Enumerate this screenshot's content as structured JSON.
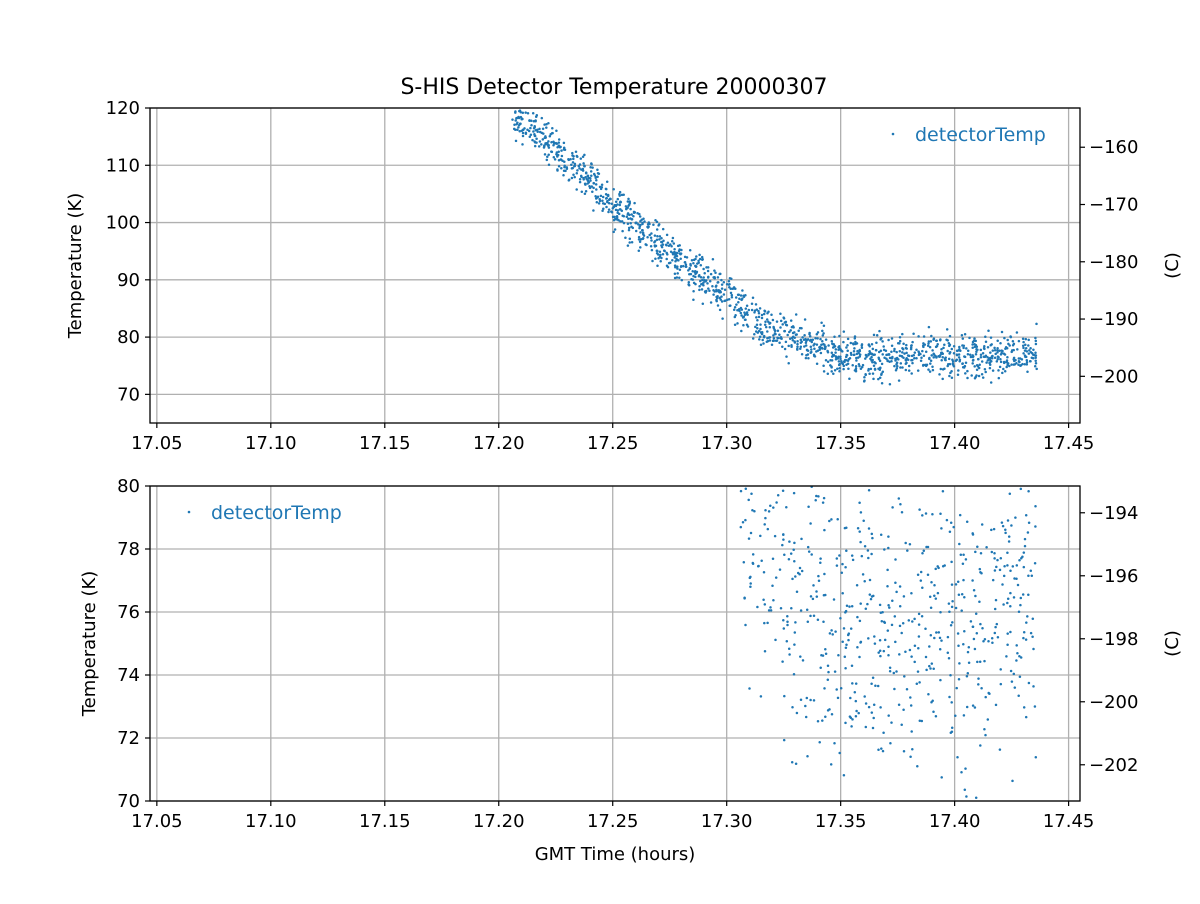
{
  "colors": {
    "series": "#1f77b4",
    "grid": "#b0b0b0",
    "axis": "#000000"
  },
  "chart_data": [
    {
      "type": "scatter",
      "title": "S-HIS Detector Temperature 20000307",
      "xlabel": "",
      "ylabel": "Temperature (K)",
      "ylabel_right": "(C)",
      "xlim": [
        17.047,
        17.455
      ],
      "ylim": [
        65,
        120
      ],
      "ylim_right": [
        -208.15,
        -153.15
      ],
      "xticks": [
        "17.05",
        "17.10",
        "17.15",
        "17.20",
        "17.25",
        "17.30",
        "17.35",
        "17.40",
        "17.45"
      ],
      "yticks": [
        "70",
        "80",
        "90",
        "100",
        "110",
        "120"
      ],
      "yticks_right": [
        "−160",
        "−170",
        "−180",
        "−190",
        "−200"
      ],
      "grid": true,
      "legend": {
        "label": "detectorTemp",
        "position": "top-right"
      },
      "series": [
        {
          "name": "detectorTemp",
          "x_range": [
            17.206,
            17.436
          ],
          "trend": [
            [
              17.206,
              118.5
            ],
            [
              17.22,
              115.0
            ],
            [
              17.23,
              110.5
            ],
            [
              17.24,
              107.0
            ],
            [
              17.25,
              103.0
            ],
            [
              17.26,
              99.5
            ],
            [
              17.27,
              96.0
            ],
            [
              17.28,
              93.0
            ],
            [
              17.29,
              90.5
            ],
            [
              17.3,
              87.0
            ],
            [
              17.31,
              84.0
            ],
            [
              17.32,
              81.5
            ],
            [
              17.33,
              80.0
            ],
            [
              17.34,
              78.0
            ],
            [
              17.35,
              77.0
            ],
            [
              17.36,
              76.5
            ],
            [
              17.37,
              76.5
            ],
            [
              17.38,
              76.5
            ],
            [
              17.39,
              77.0
            ],
            [
              17.4,
              76.5
            ],
            [
              17.41,
              76.5
            ],
            [
              17.42,
              77.0
            ],
            [
              17.436,
              77.5
            ]
          ],
          "scatter_halfwidth": 3.5,
          "approx_points": 1500
        }
      ]
    },
    {
      "type": "scatter",
      "title": "",
      "xlabel": "GMT Time (hours)",
      "ylabel": "Temperature (K)",
      "ylabel_right": "(C)",
      "xlim": [
        17.047,
        17.455
      ],
      "ylim": [
        70,
        80
      ],
      "ylim_right": [
        -203.15,
        -193.15
      ],
      "xticks": [
        "17.05",
        "17.10",
        "17.15",
        "17.20",
        "17.25",
        "17.30",
        "17.35",
        "17.40",
        "17.45"
      ],
      "yticks": [
        "70",
        "72",
        "74",
        "76",
        "78",
        "80"
      ],
      "yticks_right": [
        "−194",
        "−196",
        "−198",
        "−200",
        "−202"
      ],
      "grid": true,
      "legend": {
        "label": "detectorTemp",
        "position": "top-left"
      },
      "series": [
        {
          "name": "detectorTemp",
          "x_range": [
            17.306,
            17.436
          ],
          "trend": [
            [
              17.306,
              79.0
            ],
            [
              17.32,
              77.5
            ],
            [
              17.33,
              76.5
            ],
            [
              17.34,
              76.0
            ],
            [
              17.35,
              75.5
            ],
            [
              17.36,
              75.5
            ],
            [
              17.37,
              75.5
            ],
            [
              17.38,
              75.5
            ],
            [
              17.39,
              75.8
            ],
            [
              17.4,
              75.5
            ],
            [
              17.41,
              75.8
            ],
            [
              17.42,
              76.0
            ],
            [
              17.436,
              76.5
            ]
          ],
          "scatter_halfwidth": 4.5,
          "approx_points": 650
        }
      ]
    }
  ]
}
